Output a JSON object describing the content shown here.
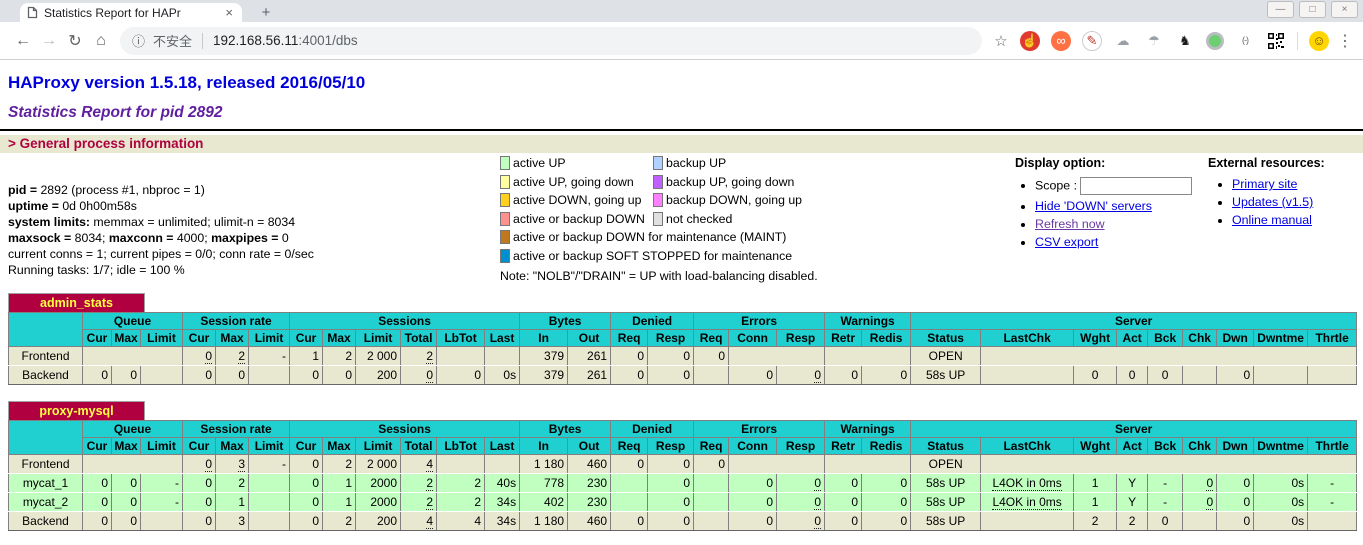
{
  "browser": {
    "tab": {
      "title": "Statistics Report for HAPr",
      "close": "×"
    },
    "new_tab": "+",
    "window_controls": {
      "minimize": "—",
      "restore": "□",
      "close": "×"
    },
    "address": {
      "insecure_label": "不安全",
      "host": "192.168.56.11",
      "path": ":4001/dbs"
    },
    "icons": {
      "back": "←",
      "forward": "→",
      "reload": "↻",
      "home": "⌂",
      "info": "ⓘ",
      "star": "☆",
      "menu": "⋮"
    },
    "extensions": [
      {
        "name": "adblock-extension-icon",
        "glyph": "☝",
        "bg": "#e03a2f",
        "fg": "#ffffff"
      },
      {
        "name": "infinity-extension-icon",
        "glyph": "∞",
        "bg": "#ff7043",
        "fg": "#ffffff"
      },
      {
        "name": "pen-extension-icon",
        "glyph": "✎",
        "bg": "#ffffff",
        "fg": "#c0392b",
        "border": true
      },
      {
        "name": "cloud-extension-icon",
        "glyph": "☁",
        "fg": "#9aa0a6"
      },
      {
        "name": "parachute-extension-icon",
        "glyph": "☂",
        "fg": "#9aa0a6"
      },
      {
        "name": "gnome-foot-extension-icon",
        "glyph": "♞",
        "fg": "#1a1a1a"
      },
      {
        "name": "green-dot-extension-icon",
        "kind": "ring"
      },
      {
        "name": "brackets-extension-icon",
        "glyph": "(-)",
        "fg": "#5f6368",
        "small": true
      },
      {
        "name": "qr-code-extension-icon",
        "kind": "qr"
      },
      {
        "name": "extensions-divider",
        "kind": "divider"
      },
      {
        "name": "emoji-extension-icon",
        "glyph": "☺",
        "bg": "#ffd600",
        "fg": "#6d4c00"
      }
    ]
  },
  "page": {
    "h1": "HAProxy version 1.5.18, released 2016/05/10",
    "h2": "Statistics Report for pid 2892",
    "section": "> General process information",
    "process_info": [
      [
        {
          "b": true,
          "t": "pid = "
        },
        {
          "t": "2892 (process #1, nbproc = 1)"
        }
      ],
      [
        {
          "b": true,
          "t": "uptime = "
        },
        {
          "t": "0d 0h00m58s"
        }
      ],
      [
        {
          "b": true,
          "t": "system limits:"
        },
        {
          "t": " memmax = unlimited; ulimit-n = 8034"
        }
      ],
      [
        {
          "b": true,
          "t": "maxsock = "
        },
        {
          "t": "8034; "
        },
        {
          "b": true,
          "t": "maxconn = "
        },
        {
          "t": "4000; "
        },
        {
          "b": true,
          "t": "maxpipes = "
        },
        {
          "t": "0"
        }
      ],
      [
        {
          "t": "current conns = 1; current pipes = 0/0; conn rate = 0/sec"
        }
      ],
      [
        {
          "t": "Running tasks: 1/7; idle = 100 %"
        }
      ]
    ],
    "legend": {
      "pairs": [
        {
          "c": "#c0ffc0",
          "t": "active UP",
          "c2": "#b0d0ff",
          "t2": "backup UP"
        },
        {
          "c": "#ffffa0",
          "t": "active UP, going down",
          "c2": "#c060ff",
          "t2": "backup UP, going down"
        },
        {
          "c": "#ffd020",
          "t": "active DOWN, going up",
          "c2": "#ff80ff",
          "t2": "backup DOWN, going up"
        },
        {
          "c": "#ff9090",
          "t": "active or backup DOWN",
          "c2": "#e0e0e0",
          "t2": "not checked"
        }
      ],
      "wide": [
        {
          "c": "#c07820",
          "t": "active or backup DOWN for maintenance (MAINT)"
        },
        {
          "c": "#0090d0",
          "t": "active or backup SOFT STOPPED for maintenance"
        }
      ],
      "note": "Note: \"NOLB\"/\"DRAIN\" = UP with load-balancing disabled."
    },
    "display": {
      "title": "Display option:",
      "scope_label": "Scope :",
      "links": [
        {
          "t": "Hide 'DOWN' servers",
          "visited": false
        },
        {
          "t": "Refresh now",
          "visited": true
        },
        {
          "t": "CSV export",
          "visited": false
        }
      ]
    },
    "external": {
      "title": "External resources:",
      "links": [
        {
          "t": "Primary site",
          "visited": false
        },
        {
          "t": "Updates (v1.5)",
          "visited": false
        },
        {
          "t": "Online manual",
          "visited": false
        }
      ]
    }
  },
  "colors": {
    "table_header_teal": "#20d0d0",
    "row_beige": "#e8e8d0",
    "row_active_up": "#c0ffc0",
    "proxy_title_bg": "#b00040",
    "proxy_title_fg": "#ffff40",
    "section_heading": "#b00040"
  },
  "table_header": {
    "groups": [
      {
        "t": "Queue",
        "n": 3
      },
      {
        "t": "Session rate",
        "n": 3
      },
      {
        "t": "Sessions",
        "n": 6
      },
      {
        "t": "Bytes",
        "n": 2
      },
      {
        "t": "Denied",
        "n": 2
      },
      {
        "t": "Errors",
        "n": 3
      },
      {
        "t": "Warnings",
        "n": 2
      },
      {
        "t": "Server",
        "n": 9
      }
    ],
    "cols": [
      "Cur",
      "Max",
      "Limit",
      "Cur",
      "Max",
      "Limit",
      "Cur",
      "Max",
      "Limit",
      "Total",
      "LbTot",
      "Last",
      "In",
      "Out",
      "Req",
      "Resp",
      "Req",
      "Conn",
      "Resp",
      "Retr",
      "Redis",
      "Status",
      "LastChk",
      "Wght",
      "Act",
      "Bck",
      "Chk",
      "Dwn",
      "Dwntme",
      "Thrtle"
    ]
  },
  "tables": [
    {
      "name": "admin_stats",
      "rows": [
        {
          "n": "Frontend",
          "type": "frontend",
          "c": [
            {
              "span": 3
            },
            {
              "t": "0",
              "dot": true
            },
            {
              "t": "2",
              "dot": true
            },
            "-",
            "1",
            "2",
            "2 000",
            {
              "t": "2",
              "dot": true
            },
            "",
            "",
            "379",
            "261",
            "0",
            "0",
            "0",
            {
              "span": 2
            },
            {
              "span": 2
            },
            {
              "t": "OPEN",
              "al": "c"
            },
            {
              "span": 8
            }
          ]
        },
        {
          "n": "Backend",
          "type": "backend",
          "c": [
            "0",
            "0",
            "",
            "0",
            "0",
            "",
            "0",
            "0",
            "200",
            {
              "t": "0",
              "dot": true
            },
            "0",
            "0s",
            "379",
            "261",
            "0",
            "0",
            "",
            "0",
            {
              "t": "0",
              "dot": true
            },
            "0",
            "0",
            {
              "t": "58s UP",
              "al": "c"
            },
            {
              "t": "",
              "al": "c"
            },
            {
              "t": "0",
              "al": "c"
            },
            {
              "t": "0",
              "al": "c"
            },
            {
              "t": "0",
              "al": "c"
            },
            "",
            "0",
            "",
            ""
          ]
        }
      ]
    },
    {
      "name": "proxy-mysql",
      "rows": [
        {
          "n": "Frontend",
          "type": "frontend",
          "c": [
            {
              "span": 3
            },
            {
              "t": "0",
              "dot": true
            },
            {
              "t": "3",
              "dot": true
            },
            "-",
            "0",
            "2",
            "2 000",
            {
              "t": "4",
              "dot": true
            },
            "",
            "",
            "1 180",
            "460",
            "0",
            "0",
            "0",
            {
              "span": 2
            },
            {
              "span": 2
            },
            {
              "t": "OPEN",
              "al": "c"
            },
            {
              "span": 8
            }
          ]
        },
        {
          "n": "mycat_1",
          "type": "up",
          "c": [
            "0",
            "0",
            "-",
            "0",
            "2",
            "",
            "0",
            "1",
            "2000",
            {
              "t": "2",
              "dot": true
            },
            "2",
            "40s",
            "778",
            "230",
            "",
            "0",
            "",
            "0",
            {
              "t": "0",
              "dot": true
            },
            "0",
            "0",
            {
              "t": "58s UP",
              "al": "c"
            },
            {
              "t": "L4OK in 0ms",
              "dot": true,
              "al": "c"
            },
            {
              "t": "1",
              "al": "c"
            },
            {
              "t": "Y",
              "al": "c"
            },
            {
              "t": "-",
              "al": "c"
            },
            {
              "t": "0",
              "dot": true
            },
            "0",
            "0s",
            {
              "t": "-",
              "al": "c"
            }
          ]
        },
        {
          "n": "mycat_2",
          "type": "up",
          "c": [
            "0",
            "0",
            "-",
            "0",
            "1",
            "",
            "0",
            "1",
            "2000",
            {
              "t": "2",
              "dot": true
            },
            "2",
            "34s",
            "402",
            "230",
            "",
            "0",
            "",
            "0",
            {
              "t": "0",
              "dot": true
            },
            "0",
            "0",
            {
              "t": "58s UP",
              "al": "c"
            },
            {
              "t": "L4OK in 0ms",
              "dot": true,
              "al": "c"
            },
            {
              "t": "1",
              "al": "c"
            },
            {
              "t": "Y",
              "al": "c"
            },
            {
              "t": "-",
              "al": "c"
            },
            {
              "t": "0",
              "dot": true
            },
            "0",
            "0s",
            {
              "t": "-",
              "al": "c"
            }
          ]
        },
        {
          "n": "Backend",
          "type": "backend",
          "c": [
            "0",
            "0",
            "",
            "0",
            "3",
            "",
            "0",
            "2",
            "200",
            {
              "t": "4",
              "dot": true
            },
            "4",
            "34s",
            "1 180",
            "460",
            "0",
            "0",
            "",
            "0",
            {
              "t": "0",
              "dot": true
            },
            "0",
            "0",
            {
              "t": "58s UP",
              "al": "c"
            },
            "",
            {
              "t": "2",
              "al": "c"
            },
            {
              "t": "2",
              "al": "c"
            },
            {
              "t": "0",
              "al": "c"
            },
            "",
            "0",
            "0s",
            ""
          ]
        }
      ]
    }
  ]
}
